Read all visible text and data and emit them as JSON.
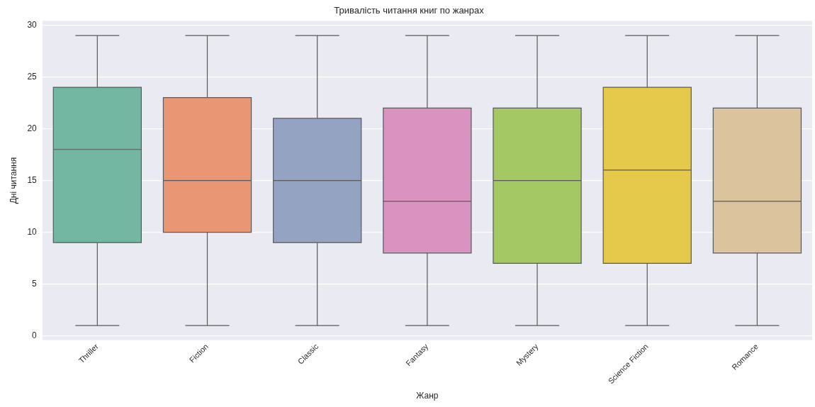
{
  "chart_data": {
    "type": "box",
    "title": "Тривалість читання книг по жанрах",
    "xlabel": "Жанр",
    "ylabel": "Дні читання",
    "categories": [
      "Thriller",
      "Fiction",
      "Classic",
      "Fantasy",
      "Mystery",
      "Science Fiction",
      "Romance"
    ],
    "boxes": [
      {
        "low": 1,
        "q1": 9,
        "median": 18,
        "q3": 24,
        "high": 29
      },
      {
        "low": 1,
        "q1": 10,
        "median": 15,
        "q3": 23,
        "high": 29
      },
      {
        "low": 1,
        "q1": 9,
        "median": 15,
        "q3": 21,
        "high": 29
      },
      {
        "low": 1,
        "q1": 8,
        "median": 13,
        "q3": 22,
        "high": 29
      },
      {
        "low": 1,
        "q1": 7,
        "median": 15,
        "q3": 22,
        "high": 29
      },
      {
        "low": 1,
        "q1": 7,
        "median": 16,
        "q3": 24,
        "high": 29
      },
      {
        "low": 1,
        "q1": 8,
        "median": 13,
        "q3": 22,
        "high": 29
      }
    ],
    "colors": [
      "#73b6a1",
      "#e99675",
      "#95a3c3",
      "#da93c1",
      "#a3c864",
      "#e5c94b",
      "#dbc39e"
    ],
    "ylim": [
      -0.4,
      30.4
    ],
    "yticks": [
      0,
      5,
      10,
      15,
      20,
      25,
      30
    ],
    "grid": "y"
  }
}
